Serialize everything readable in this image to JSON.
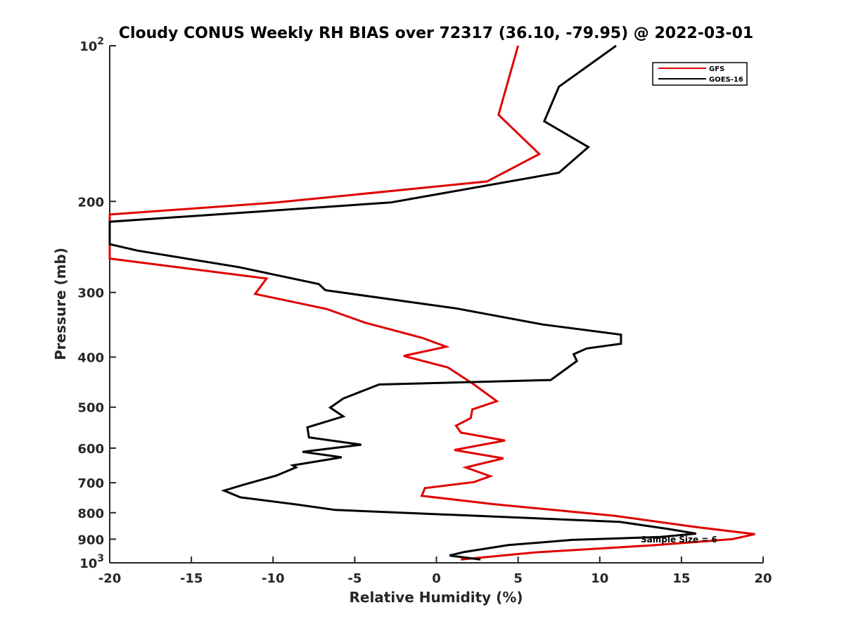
{
  "chart_data": {
    "type": "line",
    "title": "Cloudy CONUS Weekly RH BIAS over 72317 (36.10, -79.95) @ 2022-03-01",
    "xlabel": "Relative Humidity (%)",
    "ylabel": "Pressure (mb)",
    "xlim": [
      -20,
      20
    ],
    "ylim": [
      100,
      1000
    ],
    "y_scale": "log",
    "y_reversed": true,
    "grid": false,
    "legend_position": "top-right",
    "x_ticks": [
      -20,
      -15,
      -10,
      -5,
      0,
      5,
      10,
      15,
      20
    ],
    "x_tick_labels": [
      "-20",
      "-15",
      "-10",
      "-5",
      "0",
      "5",
      "10",
      "15",
      "20"
    ],
    "y_ticks": [
      100,
      200,
      300,
      400,
      500,
      600,
      700,
      800,
      900,
      1000
    ],
    "y_tick_labels": [
      "10^2",
      "200",
      "300",
      "400",
      "500",
      "600",
      "700",
      "800",
      "900",
      "10^3"
    ],
    "annotation": "Sample Size = 6",
    "series": [
      {
        "name": "GFS",
        "color": "#e00000",
        "points": [
          [
            5.0,
            100
          ],
          [
            3.8,
            136
          ],
          [
            6.3,
            162
          ],
          [
            3.1,
            183
          ],
          [
            -9.8,
            201
          ],
          [
            -20.0,
            212
          ],
          [
            -20.0,
            258
          ],
          [
            -10.4,
            282
          ],
          [
            -11.1,
            302
          ],
          [
            -6.7,
            323
          ],
          [
            -4.4,
            343
          ],
          [
            -0.9,
            367
          ],
          [
            0.6,
            382
          ],
          [
            -2.0,
            398
          ],
          [
            0.7,
            419
          ],
          [
            2.3,
            452
          ],
          [
            3.7,
            487
          ],
          [
            2.2,
            505
          ],
          [
            2.1,
            525
          ],
          [
            1.2,
            543
          ],
          [
            1.5,
            560
          ],
          [
            4.2,
            580
          ],
          [
            1.1,
            605
          ],
          [
            4.1,
            628
          ],
          [
            1.8,
            654
          ],
          [
            3.3,
            680
          ],
          [
            2.3,
            698
          ],
          [
            -0.7,
            717
          ],
          [
            -0.9,
            742
          ],
          [
            3.5,
            770
          ],
          [
            10.9,
            811
          ],
          [
            15.8,
            852
          ],
          [
            19.5,
            880
          ],
          [
            18.1,
            900
          ],
          [
            13.2,
            925
          ],
          [
            6.0,
            955
          ],
          [
            1.5,
            985
          ]
        ]
      },
      {
        "name": "GOES-16",
        "color": "#000000",
        "points": [
          [
            11.0,
            100
          ],
          [
            7.5,
            120
          ],
          [
            6.6,
            140
          ],
          [
            9.3,
            157
          ],
          [
            7.5,
            176
          ],
          [
            -2.8,
            201
          ],
          [
            -20.0,
            219
          ],
          [
            -20.0,
            242
          ],
          [
            -18.3,
            249
          ],
          [
            -12.1,
            268
          ],
          [
            -7.2,
            289
          ],
          [
            -6.8,
            297
          ],
          [
            1.2,
            322
          ],
          [
            6.5,
            346
          ],
          [
            11.3,
            362
          ],
          [
            11.3,
            377
          ],
          [
            9.2,
            385
          ],
          [
            8.4,
            395
          ],
          [
            8.6,
            407
          ],
          [
            7.0,
            443
          ],
          [
            -3.5,
            452
          ],
          [
            -5.7,
            481
          ],
          [
            -6.5,
            501
          ],
          [
            -5.7,
            521
          ],
          [
            -7.9,
            547
          ],
          [
            -7.8,
            572
          ],
          [
            -4.6,
            591
          ],
          [
            -8.2,
            610
          ],
          [
            -5.8,
            625
          ],
          [
            -8.8,
            648
          ],
          [
            -8.6,
            654
          ],
          [
            -9.8,
            678
          ],
          [
            -11.8,
            706
          ],
          [
            -13.0,
            725
          ],
          [
            -12.0,
            747
          ],
          [
            -8.7,
            770
          ],
          [
            -6.2,
            790
          ],
          [
            11.2,
            833
          ],
          [
            14.2,
            860
          ],
          [
            15.9,
            878
          ],
          [
            13.7,
            891
          ],
          [
            8.3,
            903
          ],
          [
            4.4,
            924
          ],
          [
            1.7,
            953
          ],
          [
            0.8,
            968
          ],
          [
            2.7,
            985
          ]
        ]
      }
    ]
  }
}
